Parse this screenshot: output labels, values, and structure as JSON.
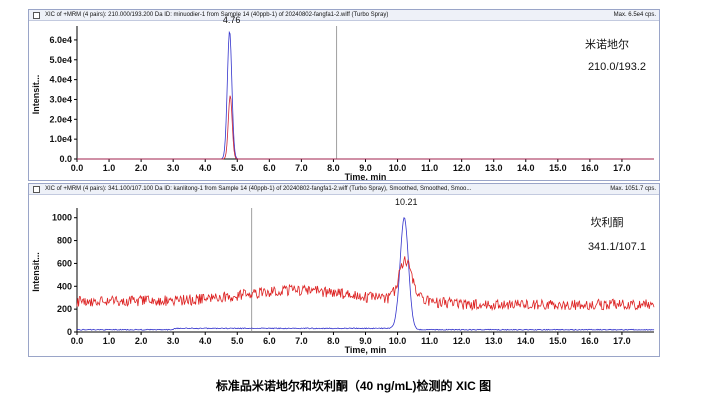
{
  "panels": [
    {
      "title": "XIC of +MRM (4 pairs): 210.000/193.200 Da ID: minuodier-1 from Sample 14 (40ppb-1) of 20240802-fangfa1-2.wiff (Turbo Spray)",
      "max_label": "Max. 6.5e4 cps.",
      "compound": "米诺地尔",
      "transition": "210.0/193.2",
      "peak_label": "4.76"
    },
    {
      "title": "XIC of +MRM (4 pairs): 341.100/107.100 Da ID: kanlitong-1 from Sample 14 (40ppb-1) of 20240802-fangfa1-2.wiff (Turbo Spray), Smoothed, Smoothed, Smoo...",
      "max_label": "Max. 1051.7 cps.",
      "compound": "坎利酮",
      "transition": "341.1/107.1",
      "peak_label": "10.21"
    }
  ],
  "caption": "标准品米诺地尔和坎利酮（40 ng/mL)检测的 XIC 图",
  "chart_data": [
    {
      "type": "line",
      "xlabel": "Time, min",
      "ylabel": "Intensit...",
      "xlim": [
        0,
        18
      ],
      "ylim": [
        0,
        65000
      ],
      "x_ticks": [
        "0.0",
        "1.0",
        "2.0",
        "3.0",
        "4.0",
        "5.0",
        "6.0",
        "7.0",
        "8.0",
        "9.0",
        "10.0",
        "11.0",
        "12.0",
        "13.0",
        "14.0",
        "15.0",
        "16.0",
        "17.0"
      ],
      "y_ticks": [
        "0.0",
        "1.0e4",
        "2.0e4",
        "3.0e4",
        "4.0e4",
        "5.0e4",
        "6.0e4"
      ],
      "marker_x": 8.1,
      "series": [
        {
          "color": "#3333cc",
          "peak_x": 4.76,
          "peak_y": 64500,
          "width": 0.07,
          "baseline": 0
        },
        {
          "color": "#cc2233",
          "peak_x": 4.78,
          "peak_y": 32000,
          "width": 0.06,
          "baseline": 0
        }
      ]
    },
    {
      "type": "line",
      "xlabel": "Time, min",
      "ylabel": "Intensit...",
      "xlim": [
        0,
        18
      ],
      "ylim": [
        0,
        1050
      ],
      "x_ticks": [
        "0.0",
        "1.0",
        "2.0",
        "3.0",
        "4.0",
        "5.0",
        "6.0",
        "7.0",
        "8.0",
        "9.0",
        "10.0",
        "11.0",
        "12.0",
        "13.0",
        "14.0",
        "15.0",
        "16.0",
        "17.0"
      ],
      "y_ticks": [
        "0",
        "200",
        "400",
        "600",
        "800",
        "1000"
      ],
      "marker_x": 5.45,
      "series": [
        {
          "color": "#3333cc",
          "peak_x": 10.21,
          "peak_y": 1000,
          "width": 0.13,
          "baseline": 20
        },
        {
          "color": "#dd2222",
          "peak_x": 10.25,
          "peak_y": 620,
          "width": 0.2,
          "baseline": 270
        }
      ]
    }
  ]
}
